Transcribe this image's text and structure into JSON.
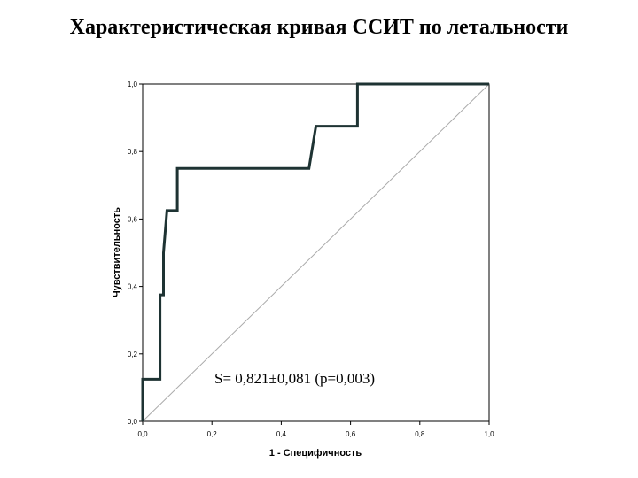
{
  "title": "Характеристическая кривая ССИТ по летальности",
  "chart_data": {
    "type": "line",
    "title": "Характеристическая кривая ССИТ по летальности",
    "xlabel": "1 - Специфичность",
    "ylabel": "Чувствительность",
    "xlim": [
      0.0,
      1.0
    ],
    "ylim": [
      0.0,
      1.0
    ],
    "x_ticks": [
      "0,0",
      "0,2",
      "0,4",
      "0,6",
      "0,8",
      "1,0"
    ],
    "y_ticks": [
      "0,0",
      "0,2",
      "0,4",
      "0,6",
      "0,8",
      "1,0"
    ],
    "tick_values": [
      0.0,
      0.2,
      0.4,
      0.6,
      0.8,
      1.0
    ],
    "grid": false,
    "series": [
      {
        "x": [
          0.0,
          0.0,
          0.05,
          0.05,
          0.06,
          0.06,
          0.07,
          0.08,
          0.08,
          0.1,
          0.1,
          0.48,
          0.5,
          0.5,
          0.62,
          0.62,
          1.0
        ],
        "y": [
          0.0,
          0.125,
          0.125,
          0.375,
          0.375,
          0.5,
          0.625,
          0.625,
          0.625,
          0.625,
          0.75,
          0.75,
          0.875,
          0.875,
          0.875,
          1.0,
          1.0
        ],
        "color": "#1e3333"
      },
      {
        "x": [
          0.0,
          1.0
        ],
        "y": [
          0.0,
          1.0
        ],
        "color": "#aaaaaa"
      }
    ],
    "annotation": "S= 0,821±0,081 (p=0,003)"
  }
}
